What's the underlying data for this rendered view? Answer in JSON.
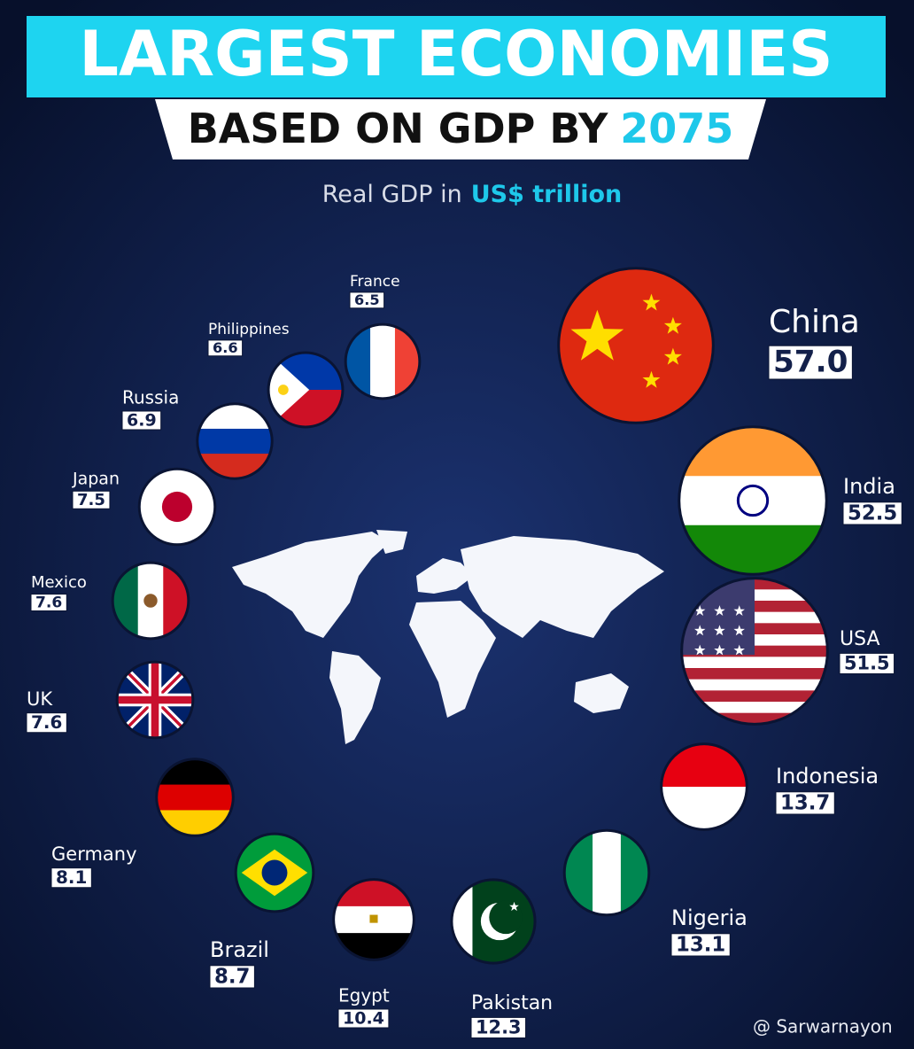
{
  "chart_data": {
    "type": "bubble",
    "title": "LARGEST ECONOMIES",
    "subtitle": "BASED ON GDP BY",
    "year": "2075",
    "measure": "Real GDP in",
    "unit": "US$ trillion",
    "categories": [
      "China",
      "India",
      "USA",
      "Indonesia",
      "Nigeria",
      "Pakistan",
      "Egypt",
      "Brazil",
      "Germany",
      "UK",
      "Mexico",
      "Japan",
      "Russia",
      "Philippines",
      "France"
    ],
    "values": [
      57.0,
      52.5,
      51.5,
      13.7,
      13.1,
      12.3,
      10.4,
      8.7,
      8.1,
      7.6,
      7.6,
      7.5,
      6.9,
      6.6,
      6.5
    ],
    "value_labels": [
      "57.0",
      "52.5",
      "51.5",
      "13.7",
      "13.1",
      "12.3",
      "10.4",
      "8.7",
      "8.1",
      "7.6",
      "7.6",
      "7.5",
      "6.9",
      "6.6",
      "6.5"
    ],
    "watermark": "@ Sarwarnayon"
  }
}
